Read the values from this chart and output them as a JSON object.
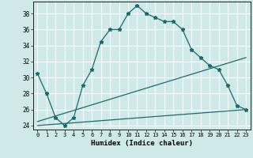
{
  "title": "",
  "xlabel": "Humidex (Indice chaleur)",
  "xlim": [
    -0.5,
    23.5
  ],
  "ylim": [
    23.5,
    39.5
  ],
  "xticks": [
    0,
    1,
    2,
    3,
    4,
    5,
    6,
    7,
    8,
    9,
    10,
    11,
    12,
    13,
    14,
    15,
    16,
    17,
    18,
    19,
    20,
    21,
    22,
    23
  ],
  "yticks": [
    24,
    26,
    28,
    30,
    32,
    34,
    36,
    38
  ],
  "bg_color": "#cfe8e8",
  "line_color": "#1a6b6b",
  "grid_color": "#ffffff",
  "series1": {
    "x": [
      0,
      1,
      2,
      3,
      4,
      5,
      6,
      7,
      8,
      9,
      10,
      11,
      12,
      13,
      14,
      15,
      16,
      17,
      18,
      19,
      20,
      21,
      22,
      23
    ],
    "y": [
      30.5,
      28.0,
      25.0,
      24.0,
      25.0,
      29.0,
      31.0,
      34.5,
      36.0,
      36.0,
      38.0,
      39.0,
      38.0,
      37.5,
      37.0,
      37.0,
      36.0,
      33.5,
      32.5,
      31.5,
      31.0,
      29.0,
      26.5,
      26.0
    ]
  },
  "series2": {
    "x": [
      0,
      23
    ],
    "y": [
      24.5,
      32.5
    ]
  },
  "series3": {
    "x": [
      0,
      23
    ],
    "y": [
      24.0,
      26.0
    ]
  }
}
